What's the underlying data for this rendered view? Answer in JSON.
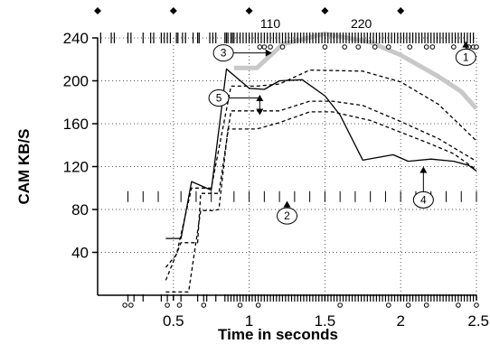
{
  "chart_data": {
    "type": "line",
    "xlabel": "Time in seconds",
    "ylabel": "CAM KB/S",
    "xlim": [
      0,
      2.5
    ],
    "ylim": [
      0,
      240
    ],
    "x_ticks": [
      0.5,
      1,
      1.5,
      2,
      2.5
    ],
    "x_tick_labels": [
      "0.5",
      "1",
      "1.5",
      "2",
      "2.5"
    ],
    "y_ticks": [
      40,
      80,
      120,
      160,
      200,
      240
    ],
    "y_tick_labels": [
      "40",
      "80",
      "120",
      "160",
      "200",
      "240"
    ],
    "grid": true,
    "grid_style": "dotted",
    "top_annotations": [
      {
        "text": "110",
        "x": 1.14
      },
      {
        "text": "220",
        "x": 1.74
      }
    ],
    "diamond_markers_x": [
      0,
      0.5,
      1.0,
      1.5,
      2.0
    ],
    "series": [
      {
        "id": "gray",
        "color": "#c8c8c8",
        "points": [
          [
            0.9,
            212
          ],
          [
            1.05,
            212
          ],
          [
            1.22,
            234
          ],
          [
            1.5,
            244
          ],
          [
            1.8,
            236
          ],
          [
            2.0,
            224
          ],
          [
            2.25,
            204
          ],
          [
            2.4,
            190
          ],
          [
            2.5,
            174
          ]
        ]
      },
      {
        "id": "solid",
        "color": "#000000",
        "points": [
          [
            0.45,
            53
          ],
          [
            0.55,
            53
          ],
          [
            0.62,
            106
          ],
          [
            0.75,
            98
          ],
          [
            0.85,
            211
          ],
          [
            1.0,
            193
          ],
          [
            1.1,
            192
          ],
          [
            1.2,
            200
          ],
          [
            1.35,
            201
          ],
          [
            1.5,
            186
          ],
          [
            1.6,
            168
          ],
          [
            1.75,
            126
          ],
          [
            1.95,
            131
          ],
          [
            2.05,
            125
          ],
          [
            2.2,
            127
          ],
          [
            2.35,
            125
          ],
          [
            2.45,
            121
          ],
          [
            2.5,
            116
          ]
        ]
      },
      {
        "id": "dashed-1",
        "color": "#000000",
        "dashed": true,
        "points": [
          [
            0.45,
            26
          ],
          [
            0.52,
            38
          ],
          [
            0.62,
            100
          ],
          [
            0.75,
            100
          ],
          [
            0.88,
            195
          ],
          [
            1.05,
            195
          ],
          [
            1.2,
            197
          ],
          [
            1.4,
            210
          ],
          [
            1.75,
            209
          ],
          [
            2.0,
            199
          ],
          [
            2.25,
            178
          ],
          [
            2.5,
            144
          ]
        ]
      },
      {
        "id": "dashed-2",
        "color": "#000000",
        "dashed": true,
        "points": [
          [
            0.45,
            14
          ],
          [
            0.55,
            49
          ],
          [
            0.66,
            49
          ],
          [
            0.68,
            95
          ],
          [
            0.8,
            95
          ],
          [
            0.88,
            172
          ],
          [
            1.05,
            172
          ],
          [
            1.2,
            172
          ],
          [
            1.4,
            181
          ],
          [
            1.55,
            181
          ],
          [
            1.75,
            177
          ],
          [
            2.0,
            162
          ],
          [
            2.25,
            146
          ],
          [
            2.5,
            125
          ]
        ]
      },
      {
        "id": "dashed-3",
        "color": "#000000",
        "dashed": true,
        "points": [
          [
            0.45,
            3
          ],
          [
            0.6,
            3
          ],
          [
            0.68,
            79
          ],
          [
            0.76,
            79
          ],
          [
            0.8,
            80
          ],
          [
            0.86,
            155
          ],
          [
            1.05,
            155
          ],
          [
            1.2,
            161
          ],
          [
            1.4,
            171
          ],
          [
            1.55,
            171
          ],
          [
            1.8,
            163
          ],
          [
            2.0,
            152
          ],
          [
            2.2,
            141
          ],
          [
            2.35,
            132
          ],
          [
            2.5,
            117
          ]
        ]
      }
    ],
    "tick_rows": {
      "top_ticks_x": [
        0.02,
        0.09,
        0.11,
        0.2,
        0.22,
        0.3,
        0.35,
        0.37,
        0.42,
        0.44,
        0.46,
        0.48,
        0.52,
        0.53,
        0.56,
        0.58,
        0.63,
        0.66,
        0.67,
        0.74,
        0.76,
        0.78,
        0.84,
        0.85,
        0.86,
        0.88,
        0.89,
        0.9,
        0.92,
        0.94,
        0.96,
        0.98,
        1.0,
        1.02,
        1.04,
        1.06,
        1.08,
        1.1,
        1.12,
        1.14,
        1.16,
        1.18,
        1.2,
        1.22,
        1.24,
        1.26,
        1.28,
        1.3,
        1.32,
        1.34,
        1.36,
        1.38,
        1.4,
        1.42,
        1.44,
        1.46,
        1.48,
        1.5,
        1.52,
        1.54,
        1.56,
        1.58,
        1.6,
        1.62,
        1.64,
        1.66,
        1.68,
        1.7,
        1.72,
        1.74,
        1.76,
        1.78,
        1.8,
        1.82,
        1.84,
        1.86,
        1.88,
        1.9,
        1.92,
        1.94,
        1.96,
        1.98,
        2.0,
        2.02,
        2.04,
        2.06,
        2.08,
        2.1,
        2.12,
        2.14,
        2.16,
        2.18,
        2.2,
        2.22,
        2.24,
        2.26,
        2.28,
        2.3,
        2.32,
        2.34,
        2.36,
        2.38,
        2.4,
        2.42,
        2.44,
        2.46,
        2.48
      ],
      "top_circles_x": [
        1.07,
        1.1,
        1.14,
        1.22,
        1.5,
        1.63,
        1.72,
        1.83,
        1.92,
        2.06,
        2.17,
        2.21,
        2.35,
        2.45,
        2.48,
        2.5
      ],
      "bottom_ticks_x": [
        0.2,
        0.24,
        0.3,
        0.42,
        0.46,
        0.55,
        0.66,
        0.7,
        0.72,
        0.78,
        0.84,
        0.86,
        0.88,
        0.9,
        0.92,
        0.94,
        0.96,
        0.98,
        1.0,
        1.02,
        1.04,
        1.06,
        1.08,
        1.1,
        1.12,
        1.14,
        1.16,
        1.18,
        1.2,
        1.22,
        1.24,
        1.26,
        1.28,
        1.3,
        1.32,
        1.34,
        1.36,
        1.38,
        1.4,
        1.42,
        1.44,
        1.46,
        1.48,
        1.5,
        1.52,
        1.54,
        1.56,
        1.58,
        1.6,
        1.62,
        1.64,
        1.66,
        1.68,
        1.7,
        1.72,
        1.74,
        1.76,
        1.78,
        1.8,
        1.82,
        1.84,
        1.86,
        1.88,
        1.9,
        1.92,
        1.94,
        1.96,
        1.98,
        2.0,
        2.02,
        2.04,
        2.06,
        2.08,
        2.1,
        2.12,
        2.14,
        2.16,
        2.18,
        2.2,
        2.22,
        2.24,
        2.26,
        2.28,
        2.3,
        2.32,
        2.34,
        2.36,
        2.38,
        2.4,
        2.42,
        2.44,
        2.46,
        2.48
      ],
      "bottom_circles_x": [
        0.18,
        0.22,
        0.46,
        0.54,
        0.7,
        0.94,
        1.06,
        1.6,
        1.92,
        2.05,
        2.17,
        2.38,
        2.5
      ],
      "middle_ticks_x": [
        0.2,
        0.3,
        0.4,
        0.55,
        0.65,
        0.75,
        0.9,
        1.0,
        1.1,
        1.2,
        1.3,
        1.4,
        1.5,
        1.6,
        1.7,
        1.8,
        1.9,
        2.0,
        2.1,
        2.2,
        2.3,
        2.4,
        2.5
      ]
    },
    "callouts": [
      {
        "label": "1",
        "x": 2.43,
        "y": 222,
        "arrow_to": [
          2.43,
          237
        ]
      },
      {
        "label": "2",
        "x": 1.25,
        "y": 74,
        "arrow_to": [
          1.25,
          88
        ]
      },
      {
        "label": "3",
        "x": 0.83,
        "y": 226,
        "arrow_to": [
          1.15,
          226
        ]
      },
      {
        "label": "4",
        "x": 2.15,
        "y": 89,
        "arrow_to": [
          2.15,
          120
        ]
      },
      {
        "label": "5",
        "x": 0.8,
        "y": 184,
        "arrow_span": [
          1.07,
          187,
          168
        ]
      }
    ]
  }
}
